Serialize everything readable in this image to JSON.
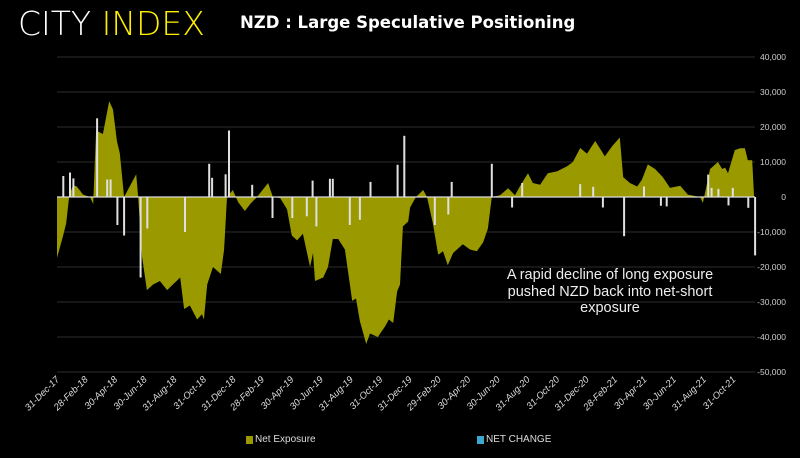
{
  "header": {
    "logo_part1": "CITY",
    "logo_part2": "INDEX",
    "title": "NZD : Large Speculative Positioning"
  },
  "chart_data": {
    "type": "area+bar",
    "title": "NZD : Large Speculative Positioning",
    "ylim": [
      -50000,
      40000
    ],
    "y_ticks": [
      "40,000",
      "30,000",
      "20,000",
      "10,000",
      "0",
      "-10,000",
      "-20,000",
      "-30,000",
      "-40,000",
      "-50,000"
    ],
    "y_tick_values": [
      40000,
      30000,
      20000,
      10000,
      0,
      -10000,
      -20000,
      -30000,
      -40000,
      -50000
    ],
    "x_ticks": [
      "31-Dec-17",
      "28-Feb-18",
      "30-Apr-18",
      "30-Jun-18",
      "31-Aug-18",
      "31-Oct-18",
      "31-Dec-18",
      "28-Feb-19",
      "30-Apr-19",
      "30-Jun-19",
      "31-Aug-19",
      "31-Oct-19",
      "31-Dec-19",
      "29-Feb-20",
      "30-Apr-20",
      "30-Jun-20",
      "31-Aug-20",
      "31-Oct-20",
      "31-Dec-20",
      "28-Feb-21",
      "30-Apr-21",
      "30-Jun-21",
      "31-Aug-21",
      "31-Oct-21"
    ],
    "x_tick_dates": [
      "2017-12-31",
      "2018-02-28",
      "2018-04-30",
      "2018-06-30",
      "2018-08-31",
      "2018-10-31",
      "2018-12-31",
      "2019-02-28",
      "2019-04-30",
      "2019-06-30",
      "2019-08-31",
      "2019-10-31",
      "2019-12-31",
      "2020-02-29",
      "2020-04-30",
      "2020-06-30",
      "2020-08-31",
      "2020-10-31",
      "2020-12-31",
      "2021-02-28",
      "2021-04-30",
      "2021-06-30",
      "2021-08-31",
      "2021-10-31"
    ],
    "grid": true,
    "legend_position": "bottom",
    "colors": {
      "net_exposure": "#9a9a00",
      "net_change": "#e0e0e0",
      "net_change_legend": "#3aa9d0",
      "grid": "#2e2e2e"
    },
    "series": [
      {
        "name": "Net Exposure",
        "type": "area",
        "points": [
          [
            "2017-12-31",
            -17400
          ],
          [
            "2018-01-12",
            -11400
          ],
          [
            "2018-01-19",
            -7500
          ],
          [
            "2018-01-25",
            0
          ],
          [
            "2018-02-02",
            3400
          ],
          [
            "2018-02-10",
            3000
          ],
          [
            "2018-02-23",
            700
          ],
          [
            "2018-03-09",
            0
          ],
          [
            "2018-03-16",
            -2000
          ],
          [
            "2018-03-22",
            19000
          ],
          [
            "2018-04-05",
            18000
          ],
          [
            "2018-04-18",
            27400
          ],
          [
            "2018-04-26",
            25000
          ],
          [
            "2018-05-04",
            16000
          ],
          [
            "2018-05-10",
            12500
          ],
          [
            "2018-05-19",
            0
          ],
          [
            "2018-06-13",
            6500
          ],
          [
            "2018-06-17",
            0
          ],
          [
            "2018-06-25",
            -17000
          ],
          [
            "2018-07-05",
            -26600
          ],
          [
            "2018-07-18",
            -25000
          ],
          [
            "2018-08-01",
            -24000
          ],
          [
            "2018-08-16",
            -26600
          ],
          [
            "2018-08-28",
            -25000
          ],
          [
            "2018-09-12",
            -23000
          ],
          [
            "2018-09-20",
            -32000
          ],
          [
            "2018-10-02",
            -31000
          ],
          [
            "2018-10-17",
            -35000
          ],
          [
            "2018-10-27",
            -33500
          ],
          [
            "2018-10-31",
            -35000
          ],
          [
            "2018-11-07",
            -25000
          ],
          [
            "2018-11-19",
            -20000
          ],
          [
            "2018-12-05",
            -22000
          ],
          [
            "2018-12-12",
            -15000
          ],
          [
            "2018-12-18",
            0
          ],
          [
            "2018-12-30",
            2000
          ],
          [
            "2019-01-10",
            -1500
          ],
          [
            "2019-01-24",
            -4000
          ],
          [
            "2019-02-04",
            -2000
          ],
          [
            "2019-02-18",
            0
          ],
          [
            "2019-03-13",
            4000
          ],
          [
            "2019-03-23",
            0
          ],
          [
            "2019-04-07",
            -300
          ],
          [
            "2019-04-21",
            -3500
          ],
          [
            "2019-05-01",
            -11000
          ],
          [
            "2019-05-12",
            -12400
          ],
          [
            "2019-05-24",
            -10500
          ],
          [
            "2019-06-08",
            -20000
          ],
          [
            "2019-06-14",
            -16000
          ],
          [
            "2019-06-18",
            -24000
          ],
          [
            "2019-07-05",
            -23000
          ],
          [
            "2019-07-15",
            -20000
          ],
          [
            "2019-07-25",
            -12000
          ],
          [
            "2019-08-05",
            -12000
          ],
          [
            "2019-08-19",
            -15000
          ],
          [
            "2019-09-03",
            -29700
          ],
          [
            "2019-09-11",
            -29000
          ],
          [
            "2019-09-19",
            -35500
          ],
          [
            "2019-10-02",
            -42000
          ],
          [
            "2019-10-10",
            -39000
          ],
          [
            "2019-10-26",
            -40000
          ],
          [
            "2019-11-10",
            -37000
          ],
          [
            "2019-11-18",
            -35000
          ],
          [
            "2019-11-27",
            -36000
          ],
          [
            "2019-12-05",
            -27000
          ],
          [
            "2019-12-11",
            -25000
          ],
          [
            "2019-12-17",
            -8400
          ],
          [
            "2019-12-28",
            -7000
          ],
          [
            "2020-01-01",
            -3000
          ],
          [
            "2020-01-13",
            0
          ],
          [
            "2020-01-28",
            2000
          ],
          [
            "2020-02-05",
            0
          ],
          [
            "2020-02-17",
            -7400
          ],
          [
            "2020-02-28",
            -16500
          ],
          [
            "2020-03-09",
            -15500
          ],
          [
            "2020-03-19",
            -19500
          ],
          [
            "2020-03-30",
            -16000
          ],
          [
            "2020-04-19",
            -13500
          ],
          [
            "2020-05-04",
            -15000
          ],
          [
            "2020-05-18",
            -15500
          ],
          [
            "2020-05-31",
            -13000
          ],
          [
            "2020-06-10",
            -9000
          ],
          [
            "2020-06-18",
            0
          ],
          [
            "2020-07-05",
            500
          ],
          [
            "2020-07-22",
            2500
          ],
          [
            "2020-08-05",
            500
          ],
          [
            "2020-08-15",
            3000
          ],
          [
            "2020-09-01",
            6800
          ],
          [
            "2020-09-11",
            4000
          ],
          [
            "2020-09-26",
            3500
          ],
          [
            "2020-10-12",
            6800
          ],
          [
            "2020-10-31",
            7300
          ],
          [
            "2020-11-21",
            8800
          ],
          [
            "2020-12-03",
            10000
          ],
          [
            "2020-12-18",
            14000
          ],
          [
            "2021-01-01",
            12400
          ],
          [
            "2021-01-18",
            16000
          ],
          [
            "2021-02-01",
            13000
          ],
          [
            "2021-02-07",
            11600
          ],
          [
            "2021-02-22",
            14500
          ],
          [
            "2021-03-10",
            17000
          ],
          [
            "2021-03-17",
            5700
          ],
          [
            "2021-03-31",
            4000
          ],
          [
            "2021-04-15",
            3000
          ],
          [
            "2021-04-25",
            5000
          ],
          [
            "2021-05-07",
            9300
          ],
          [
            "2021-05-22",
            8000
          ],
          [
            "2021-06-07",
            5700
          ],
          [
            "2021-06-22",
            2600
          ],
          [
            "2021-07-13",
            3200
          ],
          [
            "2021-07-29",
            700
          ],
          [
            "2021-08-23",
            0
          ],
          [
            "2021-08-29",
            -1700
          ],
          [
            "2021-09-13",
            8000
          ],
          [
            "2021-09-29",
            10000
          ],
          [
            "2021-10-08",
            8000
          ],
          [
            "2021-10-14",
            8400
          ],
          [
            "2021-10-20",
            6800
          ],
          [
            "2021-11-03",
            13400
          ],
          [
            "2021-11-14",
            13900
          ],
          [
            "2021-11-24",
            13900
          ],
          [
            "2021-11-30",
            10500
          ],
          [
            "2021-12-09",
            10500
          ],
          [
            "2021-12-13",
            0
          ]
        ]
      },
      {
        "name": "NET CHANGE",
        "type": "bar",
        "points": [
          [
            "2018-01-13",
            6000
          ],
          [
            "2018-01-27",
            7000
          ],
          [
            "2018-02-03",
            5300
          ],
          [
            "2018-03-24",
            22500
          ],
          [
            "2018-04-14",
            5000
          ],
          [
            "2018-04-21",
            5000
          ],
          [
            "2018-05-05",
            -8000
          ],
          [
            "2018-05-19",
            -11000
          ],
          [
            "2018-06-22",
            -23000
          ],
          [
            "2018-07-06",
            -9000
          ],
          [
            "2018-09-22",
            -10000
          ],
          [
            "2018-11-11",
            9500
          ],
          [
            "2018-11-17",
            5500
          ],
          [
            "2018-12-15",
            6500
          ],
          [
            "2018-12-22",
            19000
          ],
          [
            "2019-02-08",
            3500
          ],
          [
            "2019-03-22",
            -6000
          ],
          [
            "2019-05-02",
            -6000
          ],
          [
            "2019-06-01",
            -5500
          ],
          [
            "2019-06-13",
            4700
          ],
          [
            "2019-06-21",
            -8400
          ],
          [
            "2019-07-19",
            5200
          ],
          [
            "2019-07-25",
            5200
          ],
          [
            "2019-08-29",
            -8000
          ],
          [
            "2019-09-19",
            -6500
          ],
          [
            "2019-10-11",
            4300
          ],
          [
            "2019-12-06",
            9200
          ],
          [
            "2019-12-20",
            17500
          ],
          [
            "2020-02-21",
            -8000
          ],
          [
            "2020-03-20",
            -5000
          ],
          [
            "2020-03-27",
            4300
          ],
          [
            "2020-06-18",
            9500
          ],
          [
            "2020-07-30",
            -3000
          ],
          [
            "2020-08-20",
            4000
          ],
          [
            "2020-12-18",
            3700
          ],
          [
            "2021-01-14",
            2900
          ],
          [
            "2021-02-03",
            -3000
          ],
          [
            "2021-03-19",
            -11200
          ],
          [
            "2021-04-29",
            3000
          ],
          [
            "2021-06-03",
            -2500
          ],
          [
            "2021-06-15",
            -2700
          ],
          [
            "2021-09-09",
            6400
          ],
          [
            "2021-09-16",
            2600
          ],
          [
            "2021-09-30",
            2300
          ],
          [
            "2021-10-21",
            -2400
          ],
          [
            "2021-10-30",
            2600
          ],
          [
            "2021-12-01",
            -3100
          ],
          [
            "2021-12-15",
            -16700
          ]
        ]
      }
    ],
    "annotation": "A rapid decline of long exposure pushed NZD back into net-short exposure"
  },
  "legend": {
    "items": [
      {
        "label": "Net Exposure"
      },
      {
        "label": "NET CHANGE"
      }
    ]
  }
}
